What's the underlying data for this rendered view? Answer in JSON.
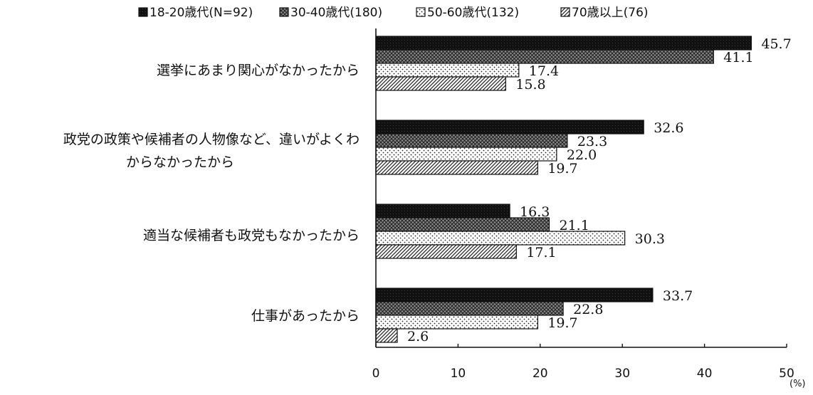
{
  "chart_data": {
    "type": "bar",
    "orientation": "horizontal",
    "categories": [
      "選挙にあまり関心がなかったから",
      "政党の政策や候補者の人物像など、違いがよくわからなかったから",
      "適当な候補者も政党もなかったから",
      "仕事があったから"
    ],
    "category_lines": [
      [
        "選挙にあまり関心がなかったから"
      ],
      [
        "政党の政策や候補者の人物像など、違いがよくわ",
        "からなかったから"
      ],
      [
        "適当な候補者も政党もなかったから"
      ],
      [
        "仕事があったから"
      ]
    ],
    "series": [
      {
        "name": "18-20歳代(N=92)",
        "values": [
          45.7,
          32.6,
          16.3,
          33.7
        ],
        "labels": [
          "45.7",
          "32.6",
          "16.3",
          "33.7"
        ],
        "pattern": "solid-dark"
      },
      {
        "name": "30-40歳代(180)",
        "values": [
          41.1,
          23.3,
          21.1,
          22.8
        ],
        "labels": [
          "41.1",
          "23.3",
          "21.1",
          "22.8"
        ],
        "pattern": "crosshatch"
      },
      {
        "name": "50-60歳代(132)",
        "values": [
          17.4,
          22.0,
          30.3,
          19.7
        ],
        "labels": [
          "17.4",
          "22.0",
          "30.3",
          "19.7"
        ],
        "pattern": "dots"
      },
      {
        "name": "70歳以上(76)",
        "values": [
          15.8,
          19.7,
          17.1,
          2.6
        ],
        "labels": [
          "15.8",
          "19.7",
          "17.1",
          "2.6"
        ],
        "pattern": "diagonal"
      }
    ],
    "xlim": [
      0,
      50
    ],
    "xticks": [
      "0",
      "10",
      "20",
      "30",
      "40",
      "50"
    ],
    "unit": "(%)",
    "legend_position": "top",
    "grid": false
  }
}
